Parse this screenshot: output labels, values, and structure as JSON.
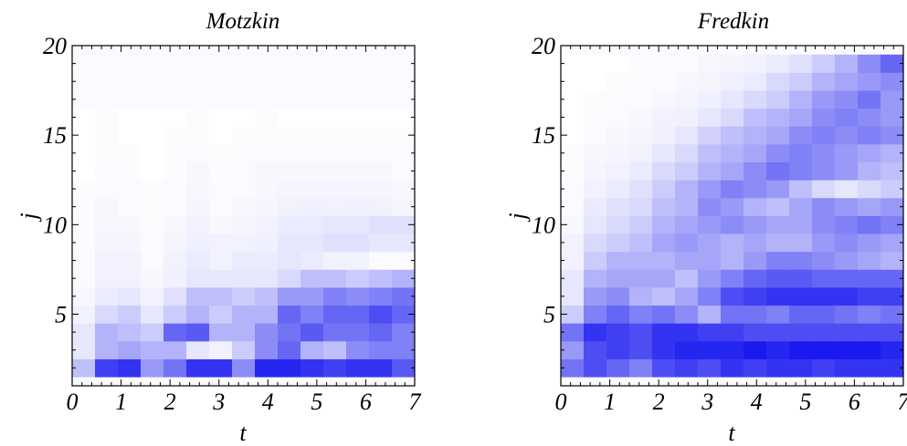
{
  "chart_data": [
    {
      "type": "heatmap",
      "title": "Motzkin",
      "xlabel": "t",
      "ylabel": "j",
      "xlim": [
        0,
        7
      ],
      "ylim": [
        1,
        20
      ],
      "xticks": [
        "0",
        "1",
        "2",
        "3",
        "4",
        "5",
        "6",
        "7"
      ],
      "yticks": [
        "5",
        "10",
        "15",
        "20"
      ],
      "ytick_values": [
        5,
        10,
        15,
        20
      ],
      "colormap": {
        "low": "#ffffff",
        "high": "#0000ee"
      },
      "rows": [
        {
          "j": 2,
          "values": [
            0.25,
            0.75,
            0.8,
            0.4,
            0.55,
            0.8,
            0.8,
            0.45,
            0.85,
            0.85,
            0.8,
            0.75,
            0.8,
            0.8,
            0.65
          ]
        },
        {
          "j": 3,
          "values": [
            0.1,
            0.3,
            0.35,
            0.3,
            0.3,
            0.1,
            0.05,
            0.2,
            0.45,
            0.6,
            0.3,
            0.25,
            0.45,
            0.5,
            0.5
          ]
        },
        {
          "j": 4,
          "values": [
            0.1,
            0.3,
            0.25,
            0.2,
            0.6,
            0.65,
            0.3,
            0.3,
            0.45,
            0.55,
            0.65,
            0.55,
            0.55,
            0.6,
            0.5
          ]
        },
        {
          "j": 5,
          "values": [
            0.05,
            0.15,
            0.2,
            0.1,
            0.2,
            0.3,
            0.2,
            0.3,
            0.3,
            0.6,
            0.5,
            0.6,
            0.6,
            0.7,
            0.6
          ]
        },
        {
          "j": 6,
          "values": [
            0.03,
            0.08,
            0.1,
            0.05,
            0.12,
            0.25,
            0.25,
            0.2,
            0.25,
            0.4,
            0.4,
            0.5,
            0.45,
            0.5,
            0.55
          ]
        },
        {
          "j": 7,
          "values": [
            0.02,
            0.05,
            0.05,
            0.03,
            0.06,
            0.1,
            0.1,
            0.1,
            0.1,
            0.15,
            0.25,
            0.25,
            0.2,
            0.25,
            0.3
          ]
        },
        {
          "j": 8,
          "values": [
            0.02,
            0.05,
            0.05,
            0.02,
            0.05,
            0.08,
            0.05,
            0.08,
            0.08,
            0.1,
            0.08,
            0.05,
            0.05,
            0.02,
            0.02
          ]
        },
        {
          "j": 9,
          "values": [
            0.01,
            0.04,
            0.04,
            0.02,
            0.04,
            0.06,
            0.05,
            0.05,
            0.06,
            0.1,
            0.1,
            0.12,
            0.12,
            0.1,
            0.1
          ]
        },
        {
          "j": 10,
          "values": [
            0.01,
            0.03,
            0.03,
            0.01,
            0.03,
            0.05,
            0.03,
            0.04,
            0.05,
            0.08,
            0.08,
            0.1,
            0.1,
            0.12,
            0.12
          ]
        },
        {
          "j": 11,
          "values": [
            0.01,
            0.03,
            0.02,
            0.01,
            0.02,
            0.04,
            0.02,
            0.03,
            0.04,
            0.05,
            0.06,
            0.05,
            0.06,
            0.05,
            0.04
          ]
        },
        {
          "j": 12,
          "values": [
            0.01,
            0.02,
            0.02,
            0.01,
            0.02,
            0.03,
            0.02,
            0.02,
            0.03,
            0.04,
            0.04,
            0.04,
            0.04,
            0.04,
            0.03
          ]
        },
        {
          "j": 13,
          "values": [
            0.0,
            0.02,
            0.01,
            0.0,
            0.01,
            0.03,
            0.01,
            0.02,
            0.03,
            0.03,
            0.03,
            0.03,
            0.03,
            0.03,
            0.02
          ]
        },
        {
          "j": 14,
          "values": [
            0.0,
            0.01,
            0.01,
            0.0,
            0.01,
            0.02,
            0.01,
            0.01,
            0.02,
            0.02,
            0.02,
            0.02,
            0.02,
            0.02,
            0.02
          ]
        },
        {
          "j": 15,
          "values": [
            0.0,
            0.01,
            0.0,
            0.0,
            0.01,
            0.01,
            0.0,
            0.01,
            0.01,
            0.01,
            0.01,
            0.01,
            0.01,
            0.01,
            0.01
          ]
        },
        {
          "j": 16,
          "values": [
            0.0,
            0.01,
            0.0,
            0.0,
            0.0,
            0.01,
            0.0,
            0.0,
            0.01,
            0.0,
            0.0,
            0.0,
            0.0,
            0.0,
            0.0
          ]
        }
      ]
    },
    {
      "type": "heatmap",
      "title": "Fredkin",
      "xlabel": "t",
      "ylabel": "j",
      "xlim": [
        0,
        7
      ],
      "ylim": [
        1,
        20
      ],
      "xticks": [
        "0",
        "1",
        "2",
        "3",
        "4",
        "5",
        "6",
        "7"
      ],
      "yticks": [
        "5",
        "10",
        "15",
        "20"
      ],
      "ytick_values": [
        5,
        10,
        15,
        20
      ],
      "colormap": {
        "low": "#ffffff",
        "high": "#0000ee"
      },
      "rows": [
        {
          "j": 2,
          "values": [
            0.55,
            0.7,
            0.6,
            0.5,
            0.7,
            0.75,
            0.7,
            0.8,
            0.75,
            0.8,
            0.8,
            0.75,
            0.8,
            0.8,
            0.8
          ]
        },
        {
          "j": 3,
          "values": [
            0.4,
            0.7,
            0.75,
            0.7,
            0.8,
            0.85,
            0.85,
            0.85,
            0.9,
            0.85,
            0.9,
            0.9,
            0.9,
            0.9,
            0.85
          ]
        },
        {
          "j": 4,
          "values": [
            0.55,
            0.8,
            0.75,
            0.7,
            0.8,
            0.8,
            0.75,
            0.75,
            0.7,
            0.7,
            0.7,
            0.7,
            0.7,
            0.7,
            0.7
          ]
        },
        {
          "j": 5,
          "values": [
            0.2,
            0.5,
            0.6,
            0.5,
            0.55,
            0.45,
            0.3,
            0.55,
            0.55,
            0.5,
            0.6,
            0.6,
            0.55,
            0.5,
            0.55
          ]
        },
        {
          "j": 6,
          "values": [
            0.1,
            0.4,
            0.45,
            0.3,
            0.25,
            0.35,
            0.5,
            0.7,
            0.75,
            0.8,
            0.8,
            0.8,
            0.8,
            0.75,
            0.75
          ]
        },
        {
          "j": 7,
          "values": [
            0.1,
            0.3,
            0.35,
            0.35,
            0.35,
            0.25,
            0.4,
            0.5,
            0.6,
            0.65,
            0.65,
            0.6,
            0.6,
            0.6,
            0.6
          ]
        },
        {
          "j": 8,
          "values": [
            0.05,
            0.2,
            0.3,
            0.3,
            0.3,
            0.35,
            0.35,
            0.3,
            0.4,
            0.5,
            0.5,
            0.45,
            0.4,
            0.35,
            0.3
          ]
        },
        {
          "j": 9,
          "values": [
            0.05,
            0.15,
            0.2,
            0.25,
            0.35,
            0.4,
            0.35,
            0.3,
            0.35,
            0.3,
            0.3,
            0.4,
            0.45,
            0.4,
            0.35
          ]
        },
        {
          "j": 10,
          "values": [
            0.03,
            0.1,
            0.15,
            0.2,
            0.3,
            0.35,
            0.4,
            0.45,
            0.4,
            0.35,
            0.35,
            0.45,
            0.5,
            0.55,
            0.5
          ]
        },
        {
          "j": 11,
          "values": [
            0.02,
            0.08,
            0.12,
            0.15,
            0.25,
            0.3,
            0.45,
            0.4,
            0.3,
            0.25,
            0.35,
            0.45,
            0.4,
            0.35,
            0.4
          ]
        },
        {
          "j": 12,
          "values": [
            0.02,
            0.05,
            0.08,
            0.12,
            0.2,
            0.3,
            0.4,
            0.5,
            0.45,
            0.4,
            0.25,
            0.15,
            0.1,
            0.15,
            0.2
          ]
        },
        {
          "j": 13,
          "values": [
            0.01,
            0.04,
            0.05,
            0.08,
            0.15,
            0.2,
            0.3,
            0.35,
            0.45,
            0.55,
            0.5,
            0.45,
            0.4,
            0.3,
            0.25
          ]
        },
        {
          "j": 14,
          "values": [
            0.01,
            0.03,
            0.04,
            0.05,
            0.1,
            0.15,
            0.25,
            0.3,
            0.35,
            0.45,
            0.5,
            0.45,
            0.4,
            0.35,
            0.3
          ]
        },
        {
          "j": 15,
          "values": [
            0.0,
            0.02,
            0.03,
            0.04,
            0.06,
            0.1,
            0.18,
            0.25,
            0.3,
            0.35,
            0.45,
            0.5,
            0.45,
            0.5,
            0.45
          ]
        },
        {
          "j": 16,
          "values": [
            0.0,
            0.01,
            0.02,
            0.03,
            0.05,
            0.06,
            0.1,
            0.15,
            0.25,
            0.3,
            0.35,
            0.45,
            0.5,
            0.45,
            0.4
          ]
        },
        {
          "j": 17,
          "values": [
            0.0,
            0.01,
            0.01,
            0.02,
            0.03,
            0.04,
            0.06,
            0.1,
            0.15,
            0.2,
            0.3,
            0.4,
            0.45,
            0.55,
            0.4
          ]
        },
        {
          "j": 18,
          "values": [
            0.0,
            0.0,
            0.01,
            0.01,
            0.02,
            0.03,
            0.04,
            0.06,
            0.08,
            0.15,
            0.2,
            0.3,
            0.35,
            0.4,
            0.45
          ]
        },
        {
          "j": 19,
          "values": [
            0.0,
            0.0,
            0.0,
            0.01,
            0.01,
            0.02,
            0.03,
            0.04,
            0.05,
            0.08,
            0.12,
            0.2,
            0.3,
            0.45,
            0.6
          ]
        }
      ]
    }
  ]
}
